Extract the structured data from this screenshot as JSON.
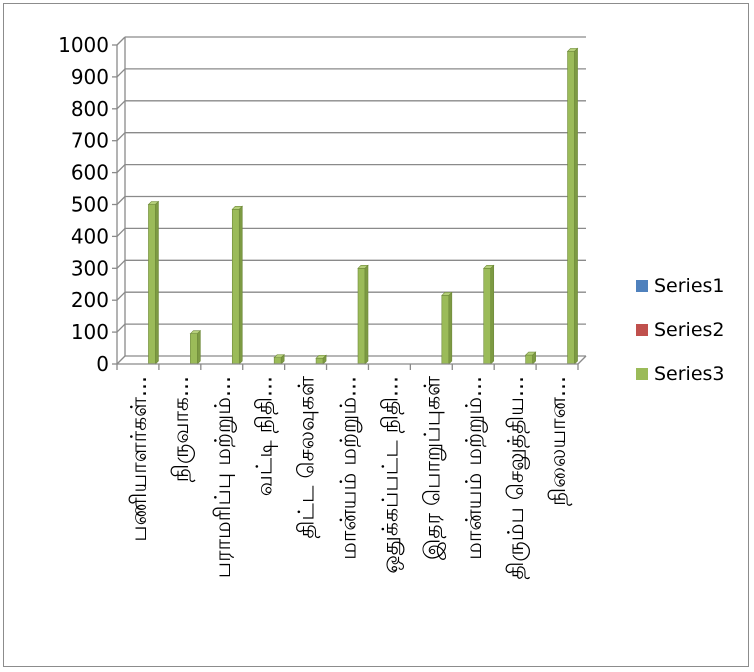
{
  "chart_data": {
    "type": "bar",
    "style": "3d-clustered-column",
    "categories": [
      "பணியாளர்கள்...",
      "நிருவாக...",
      "பராமரிப்பு மற்றும்...",
      "வட்டி நிதி...",
      "திட்ட செலவுகள்",
      "மான்யம் மற்றும்...",
      "ஒதுக்கப்பட்ட நிதி...",
      "இதர பொறுப்புகள்",
      "மான்யம் மற்றும்...",
      "திரும்ப செலுத்திய...",
      "நிலையான..."
    ],
    "series": [
      {
        "name": "Series1",
        "color": "#4f81bd",
        "values": [
          0,
          0,
          0,
          0,
          0,
          0,
          0,
          0,
          0,
          0,
          0
        ]
      },
      {
        "name": "Series2",
        "color": "#c0504d",
        "values": [
          0,
          0,
          0,
          0,
          0,
          0,
          0,
          0,
          0,
          0,
          0
        ]
      },
      {
        "name": "Series3",
        "color": "#9bbb59",
        "values": [
          500,
          95,
          485,
          20,
          18,
          300,
          0,
          215,
          300,
          28,
          980
        ]
      }
    ],
    "ylim": [
      0,
      1000
    ],
    "yticks": [
      0,
      100,
      200,
      300,
      400,
      500,
      600,
      700,
      800,
      900,
      1000
    ],
    "grid": true,
    "legend_position": "right"
  }
}
